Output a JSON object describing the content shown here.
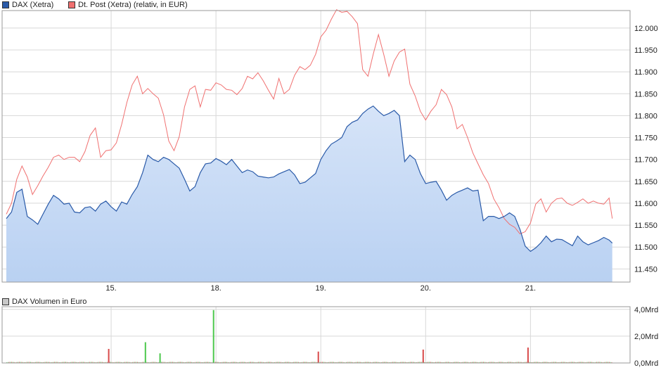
{
  "colors": {
    "dax_line": "#2a5aa8",
    "dax_fill_top": "#d6e4f8",
    "dax_fill_bottom": "#b9d1f2",
    "post_line": "#f07070",
    "grid": "#d8d8d8",
    "frame": "#9a9a9a",
    "vol_up": "#4cc84c",
    "vol_down": "#d84a4a",
    "vol_legend": "#c8c8c8"
  },
  "chart_data": [
    {
      "type": "line",
      "legend_position": "top-left",
      "grid": true,
      "x_unit": "trading day index (0 = start of 14. session, 1 day per session)",
      "ylim": [
        11420,
        12040
      ],
      "y_ticks": [
        11450,
        11500,
        11550,
        11600,
        11650,
        11700,
        11750,
        11800,
        11850,
        11900,
        11950,
        12000
      ],
      "y_tick_labels": [
        "11.450",
        "11.500",
        "11.550",
        "11.600",
        "11.650",
        "11.700",
        "11.750",
        "11.800",
        "11.850",
        "11.900",
        "11.950",
        "12.000"
      ],
      "x_ticks": [
        1,
        2,
        3,
        4,
        5
      ],
      "x_tick_labels": [
        "15.",
        "18.",
        "19.",
        "20.",
        "21."
      ],
      "xlim": [
        -0.04,
        5.95
      ],
      "series": [
        {
          "name": "DAX (Xetra)",
          "x": [
            0,
            0.05,
            0.1,
            0.15,
            0.2,
            0.25,
            0.3,
            0.35,
            0.4,
            0.45,
            0.5,
            0.55,
            0.6,
            0.65,
            0.7,
            0.75,
            0.8,
            0.85,
            0.9,
            0.95,
            1.0,
            1.05,
            1.1,
            1.15,
            1.2,
            1.25,
            1.3,
            1.35,
            1.4,
            1.45,
            1.5,
            1.55,
            1.6,
            1.65,
            1.7,
            1.75,
            1.8,
            1.85,
            1.9,
            1.95,
            2.0,
            2.05,
            2.1,
            2.15,
            2.2,
            2.25,
            2.3,
            2.35,
            2.4,
            2.45,
            2.5,
            2.55,
            2.6,
            2.65,
            2.7,
            2.75,
            2.8,
            2.85,
            2.9,
            2.95,
            3.0,
            3.05,
            3.1,
            3.15,
            3.2,
            3.25,
            3.3,
            3.35,
            3.4,
            3.45,
            3.5,
            3.55,
            3.6,
            3.65,
            3.7,
            3.75,
            3.8,
            3.85,
            3.9,
            3.95,
            4.0,
            4.05,
            4.1,
            4.15,
            4.2,
            4.25,
            4.3,
            4.35,
            4.4,
            4.45,
            4.5,
            4.55,
            4.6,
            4.65,
            4.7,
            4.75,
            4.8,
            4.85,
            4.9,
            4.95,
            5.0,
            5.05,
            5.1,
            5.15,
            5.2,
            5.25,
            5.3,
            5.35,
            5.4,
            5.45,
            5.5,
            5.55,
            5.6,
            5.65,
            5.7,
            5.75,
            5.78
          ],
          "values": [
            11565,
            11580,
            11625,
            11632,
            11570,
            11562,
            11552,
            11575,
            11598,
            11618,
            11610,
            11598,
            11600,
            11580,
            11578,
            11590,
            11592,
            11582,
            11598,
            11605,
            11592,
            11582,
            11603,
            11598,
            11620,
            11638,
            11670,
            11710,
            11700,
            11695,
            11705,
            11700,
            11690,
            11680,
            11655,
            11628,
            11638,
            11670,
            11690,
            11692,
            11702,
            11696,
            11688,
            11700,
            11685,
            11670,
            11676,
            11672,
            11662,
            11660,
            11658,
            11660,
            11667,
            11672,
            11677,
            11665,
            11645,
            11648,
            11658,
            11668,
            11700,
            11720,
            11735,
            11742,
            11750,
            11775,
            11785,
            11790,
            11805,
            11815,
            11822,
            11810,
            11800,
            11805,
            11812,
            11800,
            11695,
            11710,
            11700,
            11668,
            11645,
            11648,
            11650,
            11630,
            11607,
            11618,
            11625,
            11630,
            11635,
            11628,
            11630,
            11560,
            11570,
            11570,
            11565,
            11570,
            11578,
            11570,
            11540,
            11502,
            11490,
            11498,
            11510,
            11525,
            11512,
            11518,
            11517,
            11510,
            11503,
            11525,
            11512,
            11505,
            11510,
            11515,
            11522,
            11516,
            11509
          ]
        },
        {
          "name": "Dt. Post (Xetra) (relativ, in EUR)",
          "x": [
            0,
            0.05,
            0.1,
            0.15,
            0.2,
            0.25,
            0.3,
            0.35,
            0.4,
            0.45,
            0.5,
            0.55,
            0.6,
            0.65,
            0.7,
            0.75,
            0.8,
            0.85,
            0.9,
            0.95,
            1.0,
            1.05,
            1.1,
            1.15,
            1.2,
            1.25,
            1.3,
            1.35,
            1.4,
            1.45,
            1.5,
            1.55,
            1.6,
            1.65,
            1.7,
            1.75,
            1.8,
            1.85,
            1.9,
            1.95,
            2.0,
            2.05,
            2.1,
            2.15,
            2.2,
            2.25,
            2.3,
            2.35,
            2.4,
            2.45,
            2.5,
            2.55,
            2.6,
            2.65,
            2.7,
            2.75,
            2.8,
            2.85,
            2.9,
            2.95,
            3.0,
            3.05,
            3.1,
            3.15,
            3.2,
            3.25,
            3.3,
            3.35,
            3.4,
            3.45,
            3.5,
            3.55,
            3.6,
            3.65,
            3.7,
            3.75,
            3.8,
            3.85,
            3.9,
            3.95,
            4.0,
            4.05,
            4.1,
            4.15,
            4.2,
            4.25,
            4.3,
            4.35,
            4.4,
            4.45,
            4.5,
            4.55,
            4.6,
            4.65,
            4.7,
            4.75,
            4.8,
            4.85,
            4.9,
            4.95,
            5.0,
            5.05,
            5.1,
            5.15,
            5.2,
            5.25,
            5.3,
            5.35,
            5.4,
            5.45,
            5.5,
            5.55,
            5.6,
            5.65,
            5.7,
            5.75,
            5.78
          ],
          "values": [
            11575,
            11600,
            11655,
            11685,
            11660,
            11620,
            11640,
            11662,
            11682,
            11705,
            11710,
            11700,
            11705,
            11705,
            11695,
            11718,
            11755,
            11772,
            11705,
            11720,
            11722,
            11738,
            11780,
            11830,
            11870,
            11890,
            11850,
            11862,
            11850,
            11840,
            11802,
            11742,
            11720,
            11752,
            11820,
            11860,
            11868,
            11820,
            11860,
            11858,
            11875,
            11870,
            11860,
            11858,
            11848,
            11862,
            11890,
            11884,
            11898,
            11880,
            11858,
            11838,
            11885,
            11850,
            11860,
            11892,
            11912,
            11905,
            11915,
            11940,
            11980,
            11995,
            12020,
            12042,
            12036,
            12038,
            12026,
            12010,
            11905,
            11890,
            11940,
            11985,
            11940,
            11890,
            11925,
            11945,
            11952,
            11872,
            11845,
            11810,
            11790,
            11810,
            11825,
            11860,
            11848,
            11820,
            11770,
            11780,
            11750,
            11715,
            11690,
            11665,
            11645,
            11610,
            11590,
            11565,
            11552,
            11545,
            11530,
            11535,
            11555,
            11598,
            11610,
            11580,
            11600,
            11610,
            11612,
            11600,
            11595,
            11602,
            11610,
            11600,
            11605,
            11600,
            11598,
            11612,
            11565
          ]
        }
      ]
    },
    {
      "type": "bar",
      "legend_position": "top-left",
      "grid": true,
      "ylim": [
        0,
        4.2
      ],
      "y_ticks": [
        0,
        2,
        4
      ],
      "y_tick_labels": [
        "0,0Mrd",
        "2,0Mrd",
        "4,0Mrd"
      ],
      "series": [
        {
          "name": "DAX Volumen in Euro",
          "x": [
            0.97,
            1.32,
            1.46,
            1.97,
            2.97,
            3.97,
            4.97
          ],
          "values": [
            1.05,
            1.55,
            0.72,
            3.95,
            0.85,
            1.0,
            1.15
          ],
          "directions": [
            "down",
            "up",
            "up",
            "up",
            "down",
            "down",
            "down"
          ],
          "baseline_value": 0.08
        }
      ]
    }
  ]
}
